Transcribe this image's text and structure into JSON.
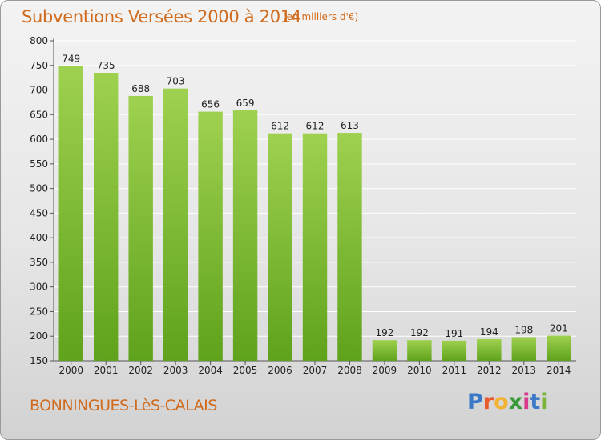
{
  "header": {
    "title": "Subventions Versées 2000 à 2014",
    "unit": "(en milliers d'€)"
  },
  "footer": {
    "place": "BONNINGUES-LèS-CALAIS",
    "brand": [
      "P",
      "r",
      "o",
      "x",
      "i",
      "t",
      "i"
    ]
  },
  "colors": {
    "title": "#d06a1c",
    "bar_top": "#9ed14f",
    "bar_bottom": "#5fa21c",
    "grid": "#ffffff",
    "brand": [
      "#3a78c8",
      "#e85a2b",
      "#f2b233",
      "#3a9a3a",
      "#d83b8c",
      "#3a78c8",
      "#7bb43a"
    ]
  },
  "chart_data": {
    "type": "bar",
    "title": "Subventions Versées 2000 à 2014",
    "subtitle": "(en milliers d'€)",
    "categories": [
      "2000",
      "2001",
      "2002",
      "2003",
      "2004",
      "2005",
      "2006",
      "2007",
      "2008",
      "2009",
      "2010",
      "2011",
      "2012",
      "2013",
      "2014"
    ],
    "values": [
      749,
      735,
      688,
      703,
      656,
      659,
      612,
      612,
      613,
      192,
      192,
      191,
      194,
      198,
      201
    ],
    "ylim": [
      150,
      800
    ],
    "yticks": [
      150,
      200,
      250,
      300,
      350,
      400,
      450,
      500,
      550,
      600,
      650,
      700,
      750,
      800
    ],
    "grid": true,
    "legend": "none"
  }
}
